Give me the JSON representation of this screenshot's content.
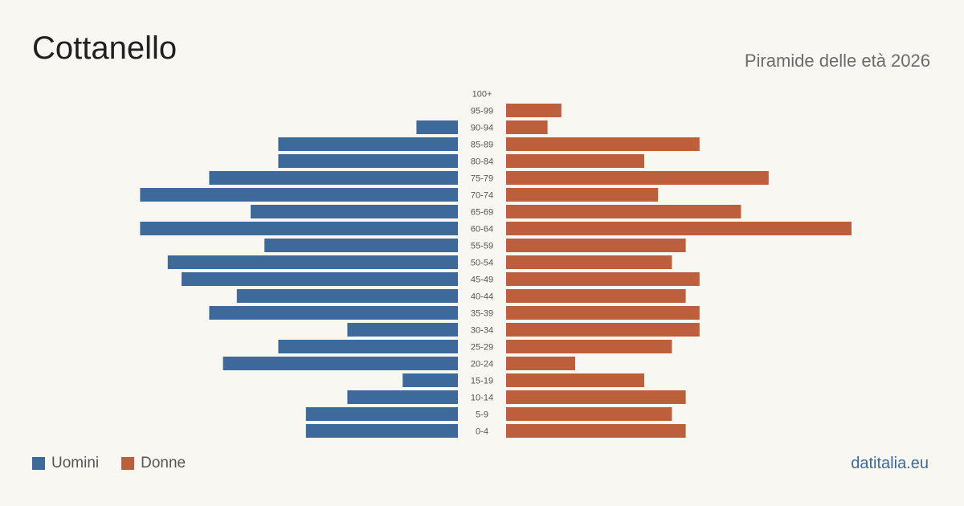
{
  "header": {
    "title": "Cottanello",
    "subtitle": "Piramide delle età 2026"
  },
  "legend": {
    "men_label": "Uomini",
    "women_label": "Donne"
  },
  "footer": {
    "source": "datitalia.eu"
  },
  "colors": {
    "men": "#3d6a9a",
    "women": "#bd5f3c",
    "label": "#555555"
  },
  "chart_data": {
    "type": "bar",
    "orientation": "horizontal-pyramid",
    "categories": [
      "100+",
      "95-99",
      "90-94",
      "85-89",
      "80-84",
      "75-79",
      "70-74",
      "65-69",
      "60-64",
      "55-59",
      "50-54",
      "45-49",
      "40-44",
      "35-39",
      "30-34",
      "25-29",
      "20-24",
      "15-19",
      "10-14",
      "5-9",
      "0-4"
    ],
    "series": [
      {
        "name": "Uomini",
        "values": [
          0,
          0,
          3,
          13,
          13,
          18,
          23,
          15,
          23,
          14,
          21,
          20,
          16,
          18,
          8,
          13,
          17,
          4,
          8,
          11,
          11
        ]
      },
      {
        "name": "Donne",
        "values": [
          0,
          4,
          3,
          14,
          10,
          19,
          11,
          17,
          25,
          13,
          12,
          14,
          13,
          14,
          14,
          12,
          5,
          10,
          13,
          12,
          13
        ]
      }
    ],
    "xlim": [
      0,
      25
    ],
    "grid": false,
    "legend_position": "bottom-left"
  }
}
